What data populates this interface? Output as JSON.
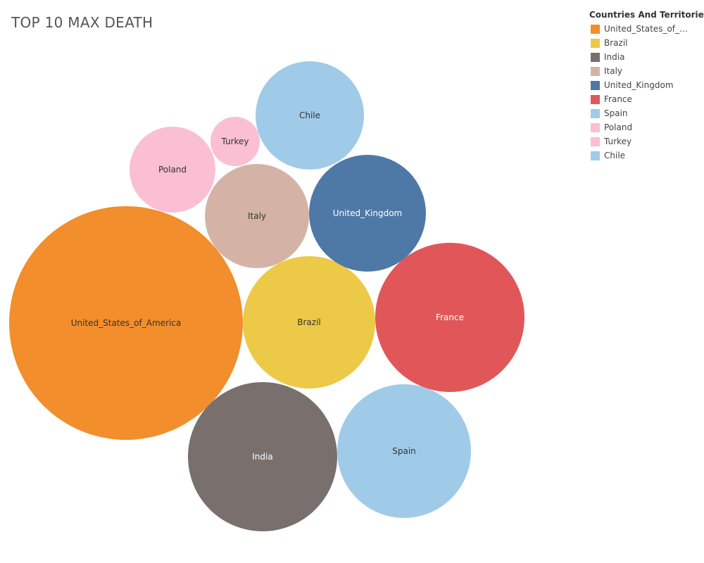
{
  "chart_data": {
    "type": "bubble",
    "title": "TOP 10 MAX DEATH",
    "legend": {
      "title": "Countries And Territories",
      "placement": "top-right"
    },
    "series": [
      {
        "name": "United_States_of_America",
        "legend_label": "United_States_of_A..",
        "color": "#f28e2b",
        "label_color": "#333333"
      },
      {
        "name": "Brazil",
        "legend_label": "Brazil",
        "color": "#edc948",
        "label_color": "#333333"
      },
      {
        "name": "India",
        "legend_label": "India",
        "color": "#79706e",
        "label_color": "#ffffff"
      },
      {
        "name": "Italy",
        "legend_label": "Italy",
        "color": "#d4b3a6",
        "label_color": "#333333"
      },
      {
        "name": "United_Kingdom",
        "legend_label": "United_Kingdom",
        "color": "#4e79a7",
        "label_color": "#ffffff"
      },
      {
        "name": "France",
        "legend_label": "France",
        "color": "#e15759",
        "label_color": "#ffffff"
      },
      {
        "name": "Spain",
        "legend_label": "Spain",
        "color": "#a0cbe8",
        "label_color": "#333333"
      },
      {
        "name": "Poland",
        "legend_label": "Poland",
        "color": "#fabfd2",
        "label_color": "#333333"
      },
      {
        "name": "Turkey",
        "legend_label": "Turkey",
        "color": "#fabfd2",
        "label_color": "#333333"
      },
      {
        "name": "Chile",
        "legend_label": "Chile",
        "color": "#a0cbe8",
        "label_color": "#333333"
      }
    ]
  }
}
